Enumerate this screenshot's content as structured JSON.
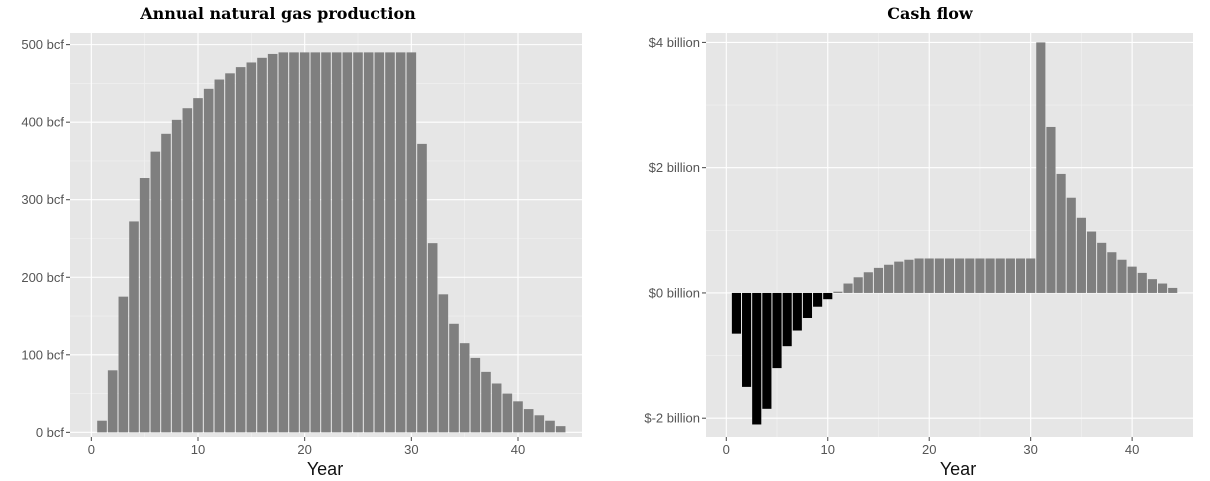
{
  "chart_data": [
    {
      "type": "bar",
      "title": "Annual natural gas production",
      "xlabel": "Year",
      "ylabel": "",
      "ylim": [
        -6,
        515
      ],
      "xlim": [
        -2,
        46
      ],
      "y_tick_values": [
        0,
        100,
        200,
        300,
        400,
        500
      ],
      "y_tick_labels": [
        "0 bcf",
        "100 bcf",
        "200 bcf",
        "300 bcf",
        "400 bcf",
        "500 bcf"
      ],
      "x_tick_values": [
        0,
        10,
        20,
        30,
        40
      ],
      "x_tick_labels": [
        "0",
        "10",
        "20",
        "30",
        "40"
      ],
      "grid": true,
      "bar_color": "#7f7f7f",
      "panel_color": "#e6e6e6",
      "x": [
        1,
        2,
        3,
        4,
        5,
        6,
        7,
        8,
        9,
        10,
        11,
        12,
        13,
        14,
        15,
        16,
        17,
        18,
        19,
        20,
        21,
        22,
        23,
        24,
        25,
        26,
        27,
        28,
        29,
        30,
        31,
        32,
        33,
        34,
        35,
        36,
        37,
        38,
        39,
        40,
        41,
        42,
        43,
        44
      ],
      "values": [
        15,
        80,
        175,
        272,
        328,
        362,
        385,
        403,
        418,
        431,
        443,
        455,
        463,
        471,
        477,
        483,
        488,
        490,
        490,
        490,
        490,
        490,
        490,
        490,
        490,
        490,
        490,
        490,
        490,
        490,
        372,
        244,
        178,
        140,
        115,
        96,
        78,
        63,
        50,
        40,
        30,
        22,
        15,
        8
      ]
    },
    {
      "type": "bar",
      "title": "Cash flow",
      "xlabel": "Year",
      "ylabel": "",
      "ylim": [
        -2.3,
        4.15
      ],
      "xlim": [
        -2,
        46
      ],
      "y_tick_values": [
        -2,
        0,
        2,
        4
      ],
      "y_tick_labels": [
        "$-2 billion",
        "$0 billion",
        "$2 billion",
        "$4 billion"
      ],
      "x_tick_values": [
        0,
        10,
        20,
        30,
        40
      ],
      "x_tick_labels": [
        "0",
        "10",
        "20",
        "30",
        "40"
      ],
      "grid": true,
      "positive_color": "#7f7f7f",
      "negative_color": "#000000",
      "panel_color": "#e6e6e6",
      "x": [
        1,
        2,
        3,
        4,
        5,
        6,
        7,
        8,
        9,
        10,
        11,
        12,
        13,
        14,
        15,
        16,
        17,
        18,
        19,
        20,
        21,
        22,
        23,
        24,
        25,
        26,
        27,
        28,
        29,
        30,
        31,
        32,
        33,
        34,
        35,
        36,
        37,
        38,
        39,
        40,
        41,
        42,
        43,
        44
      ],
      "values": [
        -0.65,
        -1.5,
        -2.1,
        -1.85,
        -1.2,
        -0.85,
        -0.6,
        -0.4,
        -0.22,
        -0.1,
        0.02,
        0.15,
        0.25,
        0.33,
        0.4,
        0.45,
        0.5,
        0.53,
        0.55,
        0.55,
        0.55,
        0.55,
        0.55,
        0.55,
        0.55,
        0.55,
        0.55,
        0.55,
        0.55,
        0.55,
        4.0,
        2.65,
        1.9,
        1.52,
        1.2,
        0.98,
        0.8,
        0.65,
        0.53,
        0.42,
        0.32,
        0.22,
        0.15,
        0.08
      ]
    }
  ]
}
